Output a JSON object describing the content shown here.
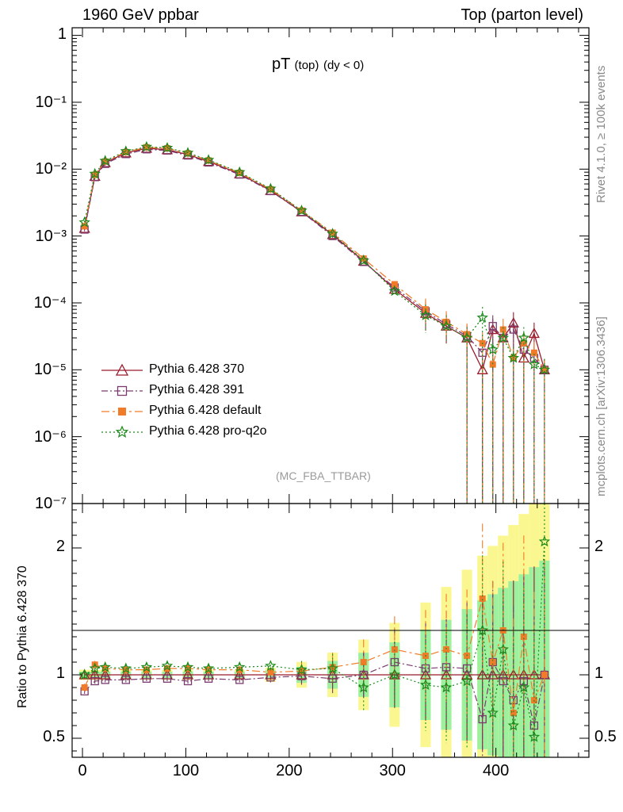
{
  "header": {
    "left": "1960 GeV ppbar",
    "right": "Top (parton level)"
  },
  "side_labels": {
    "rivet": "Rivet 4.1.0, ≥ 100k events",
    "mcplots": "mcplots.cern.ch [arXiv:1306.3436]"
  },
  "chart_data": {
    "type": "line",
    "title": "pT (top) (dy < 0)",
    "title_main": "pT",
    "title_sub": "(top)",
    "title_tail": "(dy < 0)",
    "analysis_id": "(MC_FBA_TTBAR)",
    "xlabel": "",
    "ylabel": "",
    "ratio_ylabel": "Ratio to Pythia 6.428 370",
    "xlim": [
      -10,
      490
    ],
    "ylim": [
      1e-07,
      1.3
    ],
    "yscale": "log",
    "ratio_ylim": [
      0.35,
      2.35
    ],
    "x_ticks": [
      0,
      100,
      200,
      300,
      400
    ],
    "y_ticks": [
      {
        "value": 1,
        "label": "1"
      },
      {
        "value": 0.1,
        "label": "10⁻¹"
      },
      {
        "value": 0.01,
        "label": "10⁻²"
      },
      {
        "value": 0.001,
        "label": "10⁻³"
      },
      {
        "value": 0.0001,
        "label": "10⁻⁴"
      },
      {
        "value": 1e-05,
        "label": "10⁻⁵"
      },
      {
        "value": 1e-06,
        "label": "10⁻⁶"
      },
      {
        "value": 1e-07,
        "label": "10⁻⁷"
      }
    ],
    "ratio_ticks": [
      {
        "value": 0.5,
        "label": "0.5"
      },
      {
        "value": 1,
        "label": "1"
      },
      {
        "value": 2,
        "label": "2"
      }
    ],
    "legend_position": "bottom-left",
    "series": [
      {
        "name": "Pythia 6.428 370",
        "color": "#9b1b2a",
        "marker": "triangle",
        "dash": "",
        "x": [
          2,
          12,
          22,
          42,
          62,
          82,
          102,
          122,
          152,
          182,
          212,
          242,
          272,
          302,
          332,
          352,
          372,
          387,
          397,
          407,
          417,
          427,
          437,
          447
        ],
        "y": [
          0.0013,
          0.0078,
          0.0125,
          0.0175,
          0.0205,
          0.0195,
          0.0165,
          0.013,
          0.0085,
          0.0048,
          0.0023,
          0.00105,
          0.00042,
          0.00016,
          7e-05,
          4.5e-05,
          3e-05,
          1e-05,
          4e-05,
          3e-05,
          5e-05,
          1.5e-05,
          3.5e-05,
          1e-05
        ],
        "ratio": [
          1,
          1,
          1,
          1,
          1,
          1,
          1,
          1,
          1,
          1,
          1,
          1,
          1,
          1,
          1,
          1,
          1,
          1,
          1,
          1,
          1,
          1,
          1,
          1
        ]
      },
      {
        "name": "Pythia 6.428 391",
        "color": "#7a3a6e",
        "marker": "square",
        "dash": "8,3,2,3",
        "x": [
          2,
          12,
          22,
          42,
          62,
          82,
          102,
          122,
          152,
          182,
          212,
          242,
          272,
          302,
          332,
          352,
          372,
          387,
          397,
          407,
          417,
          427,
          437,
          447
        ],
        "y": [
          0.00125,
          0.0076,
          0.012,
          0.0168,
          0.0198,
          0.019,
          0.016,
          0.0126,
          0.0083,
          0.0047,
          0.0023,
          0.001,
          0.00041,
          0.00017,
          7.5e-05,
          4.8e-05,
          3.2e-05,
          1.8e-05,
          4.5e-05,
          3e-05,
          4e-05,
          2e-05,
          1.5e-05,
          1e-05
        ],
        "ratio": [
          0.87,
          0.95,
          0.96,
          0.96,
          0.97,
          0.97,
          0.95,
          0.97,
          0.96,
          0.98,
          0.99,
          0.97,
          1.0,
          1.1,
          1.05,
          1.06,
          1.05,
          0.65,
          1.1,
          0.95,
          0.8,
          0.95,
          0.6,
          1.0
        ]
      },
      {
        "name": "Pythia 6.428 default",
        "color": "#f07c2a",
        "marker": "filled-square",
        "dash": "10,4,3,4",
        "x": [
          2,
          12,
          22,
          42,
          62,
          82,
          102,
          122,
          152,
          182,
          212,
          242,
          272,
          302,
          332,
          352,
          372,
          387,
          397,
          407,
          417,
          427,
          437,
          447
        ],
        "y": [
          0.0014,
          0.0082,
          0.013,
          0.018,
          0.0212,
          0.0205,
          0.0172,
          0.0135,
          0.0088,
          0.005,
          0.0024,
          0.00112,
          0.00046,
          0.00019,
          8e-05,
          5.2e-05,
          3.4e-05,
          2.5e-05,
          1.2e-05,
          4e-05,
          1.5e-05,
          2.5e-05,
          1.8e-05,
          1e-05
        ],
        "ratio": [
          0.9,
          1.08,
          1.05,
          1.04,
          1.04,
          1.05,
          1.05,
          1.04,
          1.04,
          1.02,
          1.03,
          1.06,
          1.1,
          1.2,
          1.15,
          1.2,
          1.15,
          1.6,
          1.1,
          1.35,
          0.7,
          1.3,
          0.8,
          1.0
        ]
      },
      {
        "name": "Pythia 6.428 pro-q2o",
        "color": "#1a8a1a",
        "marker": "star",
        "dash": "2,3",
        "x": [
          2,
          12,
          22,
          42,
          62,
          82,
          102,
          122,
          152,
          182,
          212,
          242,
          272,
          302,
          332,
          352,
          372,
          387,
          397,
          407,
          417,
          427,
          437,
          447
        ],
        "y": [
          0.0016,
          0.0085,
          0.0133,
          0.0185,
          0.0215,
          0.0208,
          0.0175,
          0.0137,
          0.009,
          0.0051,
          0.0024,
          0.00108,
          0.00043,
          0.00015,
          6.5e-05,
          4.5e-05,
          3e-05,
          6e-05,
          2e-05,
          3e-05,
          1.5e-05,
          3e-05,
          1.2e-05,
          1e-05
        ],
        "ratio": [
          1.0,
          1.05,
          1.06,
          1.05,
          1.06,
          1.07,
          1.06,
          1.05,
          1.06,
          1.07,
          1.04,
          1.05,
          0.9,
          1.0,
          0.92,
          0.9,
          0.95,
          1.35,
          0.7,
          1.2,
          0.6,
          0.9,
          0.51,
          2.05
        ]
      }
    ]
  }
}
